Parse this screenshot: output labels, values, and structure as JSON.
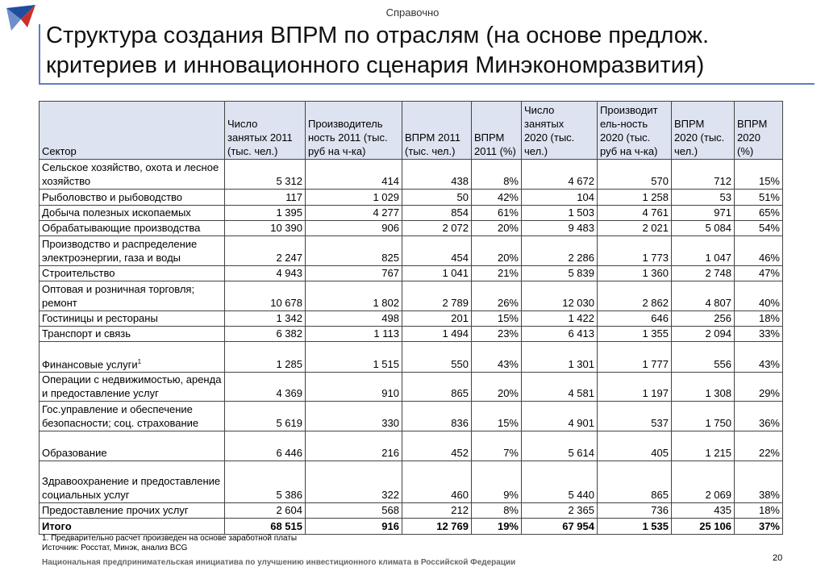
{
  "header": {
    "note": "Справочно",
    "title_lines": [
      "Структура создания ВПРМ по отраслям (на основе предлож.",
      "критериев и инновационного сценария Минэкономразвития)"
    ]
  },
  "table": {
    "columns": [
      [
        "Сектор"
      ],
      [
        "Число",
        "занятых 2011",
        "(тыс. чел.)"
      ],
      [
        "Производитель",
        "ность 2011 (тыс.",
        "руб на ч-ка)"
      ],
      [
        "ВПРМ 2011",
        "(тыс. чел.)"
      ],
      [
        "ВПРМ",
        "2011 (%)"
      ],
      [
        "Число",
        "занятых",
        "2020 (тыс.",
        "чел.)"
      ],
      [
        "Производит",
        "ель-ность",
        "2020 (тыс.",
        "руб на ч-ка)"
      ],
      [
        "ВПРМ",
        "2020 (тыс.",
        "чел.)"
      ],
      [
        "ВПРМ",
        "2020",
        "(%)"
      ]
    ],
    "rows": [
      {
        "cells": [
          "Сельское хозяйство, охота и лесное хозяйство",
          "5 312",
          "414",
          "438",
          "8%",
          "4 672",
          "570",
          "712",
          "15%"
        ]
      },
      {
        "cells": [
          "Рыболовство и рыбоводство",
          "117",
          "1 029",
          "50",
          "42%",
          "104",
          "1 258",
          "53",
          "51%"
        ]
      },
      {
        "cells": [
          "Добыча полезных ископаемых",
          "1 395",
          "4 277",
          "854",
          "61%",
          "1 503",
          "4 761",
          "971",
          "65%"
        ]
      },
      {
        "cells": [
          "Обрабатывающие производства",
          "10 390",
          "906",
          "2 072",
          "20%",
          "9 483",
          "2 021",
          "5 084",
          "54%"
        ]
      },
      {
        "cells": [
          "Производство и  распределение электроэнергии, газа и воды",
          "2 247",
          "825",
          "454",
          "20%",
          "2 286",
          "1 773",
          "1 047",
          "46%"
        ]
      },
      {
        "cells": [
          "Строительство",
          "4 943",
          "767",
          "1 041",
          "21%",
          "5 839",
          "1 360",
          "2 748",
          "47%"
        ]
      },
      {
        "cells": [
          "Оптовая и розничная торговля; ремонт",
          "10 678",
          "1 802",
          "2 789",
          "26%",
          "12 030",
          "2 862",
          "4 807",
          "40%"
        ]
      },
      {
        "cells": [
          "Гостиницы и рестораны",
          "1 342",
          "498",
          "201",
          "15%",
          "1 422",
          "646",
          "256",
          "18%"
        ]
      },
      {
        "cells": [
          "Транспорт и связь",
          "6 382",
          "1 113",
          "1 494",
          "23%",
          "6 413",
          "1 355",
          "2 094",
          "33%"
        ]
      },
      {
        "cells": [
          "Финансовые услуги",
          "1 285",
          "1 515",
          "550",
          "43%",
          "1 301",
          "1 777",
          "556",
          "43%"
        ],
        "sup": "1"
      },
      {
        "cells": [
          "Операции с недвижимостью, аренда и предоставление услуг",
          "4 369",
          "910",
          "865",
          "20%",
          "4 581",
          "1 197",
          "1 308",
          "29%"
        ]
      },
      {
        "cells": [
          "Гос.управление и обеспечение безопасности; соц. страхование",
          "5 619",
          "330",
          "836",
          "15%",
          "4 901",
          "537",
          "1 750",
          "36%"
        ]
      },
      {
        "cells": [
          "Образование",
          "6 446",
          "216",
          "452",
          "7%",
          "5 614",
          "405",
          "1 215",
          "22%"
        ]
      },
      {
        "cells": [
          "Здравоохранение и предоставление социальных услуг",
          "5 386",
          "322",
          "460",
          "9%",
          "5 440",
          "865",
          "2 069",
          "38%"
        ]
      },
      {
        "cells": [
          "Предоставление прочих услуг",
          "2 604",
          "568",
          "212",
          "8%",
          "2 365",
          "736",
          "435",
          "18%"
        ]
      },
      {
        "cells": [
          "Итого",
          "68 515",
          "916",
          "12 769",
          "19%",
          "67 954",
          "1 535",
          "25 106",
          "37%"
        ]
      }
    ]
  },
  "footnotes": [
    "1. Предварительно расчет произведен на основе заработной платы",
    "Источник: Росстат, Минэк, анализ BCG"
  ],
  "footer": "Национальная предпринимательская инициатива по улучшению инвестиционного климата в Российской Федерации",
  "page_number": "20"
}
